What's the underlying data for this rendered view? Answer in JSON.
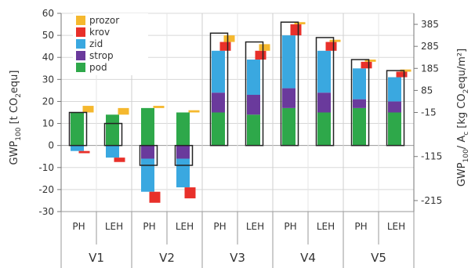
{
  "chart_data": {
    "type": "bar",
    "stacked": true,
    "left_axis": {
      "label": "GWP",
      "label_sub": "100",
      "label_rest": " [t CO",
      "label_sub2": "2",
      "label_end": "equ]",
      "ylim": [
        -30,
        60
      ],
      "ticks": [
        "60",
        "50",
        "40",
        "30",
        "20",
        "10",
        "0",
        "-10",
        "-20",
        "-30"
      ],
      "tick_values": [
        60,
        50,
        40,
        30,
        20,
        10,
        0,
        -10,
        -20,
        -30
      ]
    },
    "right_axis": {
      "label": "GWP",
      "label_sub": "100",
      "label_rest": "/ A",
      "label_sub2": "c",
      "label_end": " [kg CO",
      "label_sub3": "2",
      "label_end2": "equ/m²]",
      "ticks": [
        "385",
        "285",
        "185",
        "85",
        "-15",
        "-115",
        "-215"
      ],
      "tick_left_values": [
        55,
        45,
        35,
        25,
        15,
        -5,
        -25
      ]
    },
    "legend": {
      "position": "top-left",
      "items": [
        {
          "name": "prozor",
          "color": "#f5b82e"
        },
        {
          "name": "krov",
          "color": "#e8302a"
        },
        {
          "name": "zid",
          "color": "#3aa8e0"
        },
        {
          "name": "strop",
          "color": "#6a3a9c"
        },
        {
          "name": "pod",
          "color": "#2ea84a"
        }
      ]
    },
    "categories": [
      {
        "label": "PH",
        "group": "V1"
      },
      {
        "label": "LEH",
        "group": "V1"
      },
      {
        "label": "PH",
        "group": "V2"
      },
      {
        "label": "LEH",
        "group": "V2"
      },
      {
        "label": "PH",
        "group": "V3"
      },
      {
        "label": "LEH",
        "group": "V3"
      },
      {
        "label": "PH",
        "group": "V4"
      },
      {
        "label": "LEH",
        "group": "V4"
      },
      {
        "label": "PH",
        "group": "V5"
      },
      {
        "label": "LEH",
        "group": "V5"
      }
    ],
    "groups": [
      "V1",
      "V2",
      "V3",
      "V4",
      "V5"
    ],
    "series": [
      {
        "name": "pod",
        "values": [
          15,
          14,
          17,
          15,
          15,
          14,
          17,
          15,
          17,
          15
        ]
      },
      {
        "name": "strop",
        "values": [
          0,
          0,
          -6,
          -6,
          9,
          9,
          9,
          9,
          4,
          5
        ]
      },
      {
        "name": "zid",
        "values": [
          -2.5,
          -5.5,
          -15,
          -13,
          19,
          16,
          24,
          19,
          14,
          11
        ]
      },
      {
        "name": "krov",
        "values": [
          -1,
          -2,
          -5,
          -5,
          4,
          4,
          5,
          4,
          3,
          2.5
        ]
      },
      {
        "name": "prozor",
        "values": [
          3,
          3,
          1,
          1,
          3,
          3,
          1,
          1,
          1,
          1
        ]
      }
    ],
    "net_totals": [
      15,
      10,
      -9,
      -9,
      51,
      47,
      56,
      49,
      39,
      34
    ]
  }
}
